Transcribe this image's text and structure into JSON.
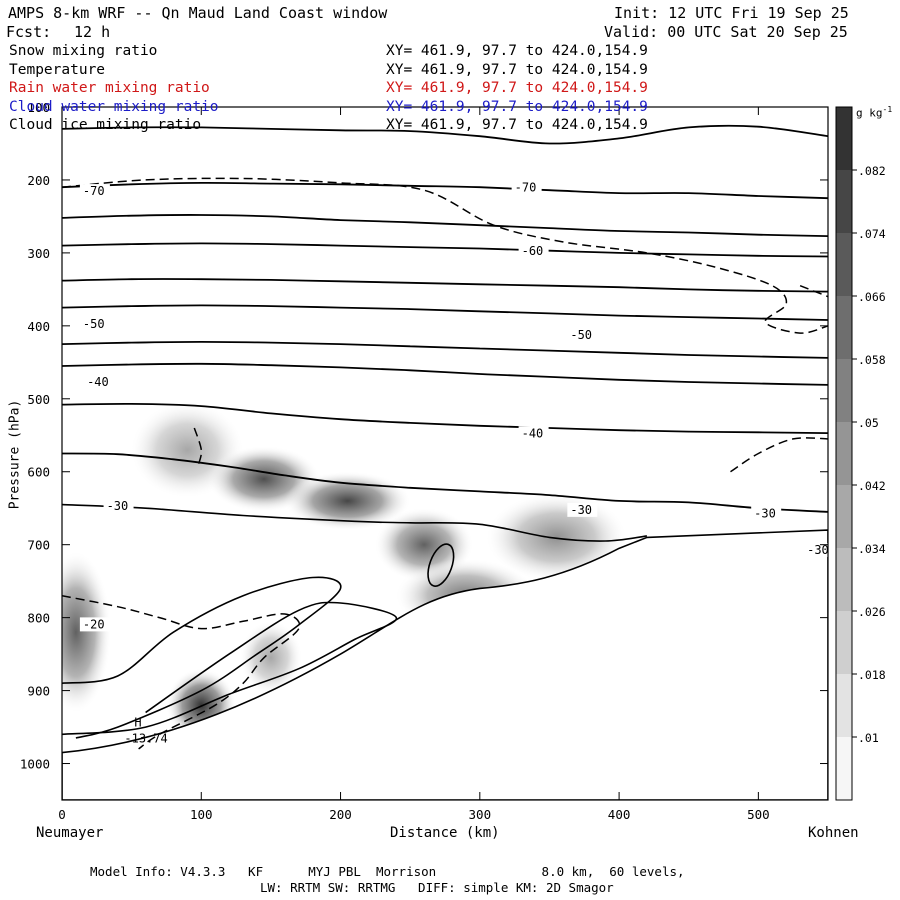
{
  "header": {
    "title": "AMPS 8-km WRF -- Qn Maud Land Coast window",
    "init": "Init: 12 UTC Fri 19 Sep 25",
    "fcst_label": "Fcst:",
    "fcst_value": "12 h",
    "valid": "Valid: 00 UTC Sat 20 Sep 25"
  },
  "fields": [
    {
      "name": "Snow mixing ratio",
      "xy": "XY= 461.9, 97.7 to 424.0,154.9",
      "color": "#000000"
    },
    {
      "name": "Temperature",
      "xy": "XY= 461.9, 97.7 to 424.0,154.9",
      "color": "#000000"
    },
    {
      "name": "Rain water mixing ratio",
      "xy": "XY= 461.9, 97.7 to 424.0,154.9",
      "color": "#d01818"
    },
    {
      "name": "Cloud water mixing ratio",
      "xy": "XY= 461.9, 97.7 to 424.0,154.9",
      "color": "#1c1cc8"
    },
    {
      "name": "Cloud ice mixing ratio",
      "xy": "XY= 461.9, 97.7 to 424.0,154.9",
      "color": "#000000"
    }
  ],
  "footer": {
    "line1": "Model Info: V4.3.3   KF      MYJ PBL  Morrison              8.0 km,  60 levels,",
    "line2": "LW: RRTM SW: RRTMG   DIFF: simple KM: 2D Smagor"
  },
  "chart_data": {
    "type": "contour-cross-section",
    "xlabel": "Distance (km)",
    "ylabel": "Pressure (hPa)",
    "xlim": [
      0,
      550
    ],
    "ylim": [
      1050,
      100
    ],
    "x_ticks": [
      0,
      100,
      200,
      300,
      400,
      500
    ],
    "y_ticks": [
      100,
      200,
      300,
      400,
      500,
      600,
      700,
      800,
      900,
      1000
    ],
    "left_endpoint": "Neumayer",
    "right_endpoint": "Kohnen",
    "colorbar": {
      "unit": "g kg",
      "unit_exp": "-1",
      "tick_labels": [
        ".01",
        ".018",
        ".026",
        ".034",
        ".042",
        ".05",
        ".058",
        ".066",
        ".074",
        ".082"
      ],
      "min": 0.006,
      "max": 0.09
    },
    "isotherm_labels": [
      {
        "text": "-70",
        "x": 15,
        "p": 218
      },
      {
        "text": "-70",
        "x": 325,
        "p": 213
      },
      {
        "text": "-60",
        "x": 330,
        "p": 300
      },
      {
        "text": "-50",
        "x": 15,
        "p": 400
      },
      {
        "text": "-50",
        "x": 365,
        "p": 415
      },
      {
        "text": "-40",
        "x": 18,
        "p": 480
      },
      {
        "text": "-40",
        "x": 330,
        "p": 550
      },
      {
        "text": "-30",
        "x": 32,
        "p": 650
      },
      {
        "text": "-30",
        "x": 365,
        "p": 655
      },
      {
        "text": "-30",
        "x": 497,
        "p": 660
      },
      {
        "text": "-30",
        "x": 535,
        "p": 710
      },
      {
        "text": "-20",
        "x": 15,
        "p": 812
      }
    ],
    "high_marker": {
      "label": "H",
      "value": "-13.74",
      "x": 52,
      "p": 960
    },
    "isotherms": [
      {
        "level": -80,
        "points": [
          [
            0,
            130
          ],
          [
            50,
            128
          ],
          [
            100,
            128
          ],
          [
            150,
            130
          ],
          [
            200,
            132
          ],
          [
            250,
            133
          ],
          [
            300,
            140
          ],
          [
            350,
            150
          ],
          [
            400,
            143
          ],
          [
            450,
            128
          ],
          [
            500,
            127
          ],
          [
            550,
            140
          ]
        ]
      },
      {
        "level": -70,
        "points": [
          [
            0,
            210
          ],
          [
            50,
            206
          ],
          [
            100,
            204
          ],
          [
            150,
            205
          ],
          [
            200,
            206
          ],
          [
            250,
            208
          ],
          [
            300,
            210
          ],
          [
            350,
            214
          ],
          [
            400,
            218
          ],
          [
            450,
            218
          ],
          [
            500,
            222
          ],
          [
            550,
            225
          ]
        ]
      },
      {
        "level": -70,
        "points": [
          [
            0,
            252
          ],
          [
            50,
            249
          ],
          [
            100,
            248
          ],
          [
            150,
            250
          ],
          [
            200,
            255
          ],
          [
            250,
            258
          ],
          [
            300,
            262
          ],
          [
            350,
            266
          ],
          [
            400,
            270
          ],
          [
            450,
            272
          ],
          [
            500,
            275
          ],
          [
            550,
            277
          ]
        ]
      },
      {
        "level": -60,
        "points": [
          [
            0,
            290
          ],
          [
            50,
            288
          ],
          [
            100,
            287
          ],
          [
            150,
            288
          ],
          [
            200,
            290
          ],
          [
            250,
            292
          ],
          [
            300,
            294
          ],
          [
            350,
            297
          ],
          [
            400,
            300
          ],
          [
            450,
            302
          ],
          [
            500,
            304
          ],
          [
            550,
            305
          ]
        ]
      },
      {
        "level": -60,
        "points": [
          [
            0,
            338
          ],
          [
            50,
            336
          ],
          [
            100,
            336
          ],
          [
            150,
            337
          ],
          [
            200,
            339
          ],
          [
            250,
            341
          ],
          [
            300,
            343
          ],
          [
            350,
            345
          ],
          [
            400,
            347
          ],
          [
            450,
            350
          ],
          [
            500,
            352
          ],
          [
            550,
            353
          ]
        ]
      },
      {
        "level": -50,
        "points": [
          [
            0,
            375
          ],
          [
            50,
            373
          ],
          [
            100,
            372
          ],
          [
            150,
            373
          ],
          [
            200,
            375
          ],
          [
            250,
            377
          ],
          [
            300,
            380
          ],
          [
            350,
            383
          ],
          [
            400,
            386
          ],
          [
            450,
            388
          ],
          [
            500,
            390
          ],
          [
            550,
            392
          ]
        ]
      },
      {
        "level": -50,
        "points": [
          [
            0,
            425
          ],
          [
            50,
            423
          ],
          [
            100,
            422
          ],
          [
            150,
            423
          ],
          [
            200,
            425
          ],
          [
            250,
            428
          ],
          [
            300,
            431
          ],
          [
            350,
            434
          ],
          [
            400,
            437
          ],
          [
            450,
            440
          ],
          [
            500,
            442
          ],
          [
            550,
            444
          ]
        ]
      },
      {
        "level": -40,
        "points": [
          [
            0,
            455
          ],
          [
            50,
            453
          ],
          [
            100,
            452
          ],
          [
            150,
            454
          ],
          [
            200,
            457
          ],
          [
            250,
            461
          ],
          [
            300,
            466
          ],
          [
            350,
            470
          ],
          [
            400,
            474
          ],
          [
            450,
            477
          ],
          [
            500,
            479
          ],
          [
            550,
            481
          ]
        ]
      },
      {
        "level": -40,
        "points": [
          [
            0,
            508
          ],
          [
            50,
            507
          ],
          [
            100,
            510
          ],
          [
            150,
            520
          ],
          [
            200,
            528
          ],
          [
            250,
            533
          ],
          [
            300,
            537
          ],
          [
            350,
            540
          ],
          [
            400,
            543
          ],
          [
            450,
            545
          ],
          [
            500,
            546
          ],
          [
            550,
            547
          ]
        ]
      },
      {
        "level": -30,
        "points": [
          [
            0,
            575
          ],
          [
            40,
            576
          ],
          [
            80,
            583
          ],
          [
            120,
            593
          ],
          [
            160,
            605
          ],
          [
            200,
            615
          ],
          [
            250,
            622
          ],
          [
            300,
            627
          ],
          [
            350,
            632
          ],
          [
            400,
            640
          ],
          [
            450,
            642
          ],
          [
            500,
            650
          ],
          [
            550,
            655
          ]
        ]
      }
    ],
    "snow_blobs": [
      {
        "x": 90,
        "p": 570,
        "rx": 40,
        "rp": 65,
        "peak": 0.04
      },
      {
        "x": 145,
        "p": 610,
        "rx": 40,
        "rp": 45,
        "peak": 0.078
      },
      {
        "x": 205,
        "p": 640,
        "rx": 45,
        "rp": 40,
        "peak": 0.082
      },
      {
        "x": 260,
        "p": 700,
        "rx": 35,
        "rp": 50,
        "peak": 0.07
      },
      {
        "x": 355,
        "p": 690,
        "rx": 50,
        "rp": 60,
        "peak": 0.05
      },
      {
        "x": 10,
        "p": 820,
        "rx": 25,
        "rp": 110,
        "peak": 0.07
      },
      {
        "x": 100,
        "p": 920,
        "rx": 25,
        "rp": 50,
        "peak": 0.09
      },
      {
        "x": 150,
        "p": 855,
        "rx": 22,
        "rp": 50,
        "peak": 0.04
      },
      {
        "x": 290,
        "p": 770,
        "rx": 50,
        "rp": 50,
        "peak": 0.06
      }
    ]
  }
}
